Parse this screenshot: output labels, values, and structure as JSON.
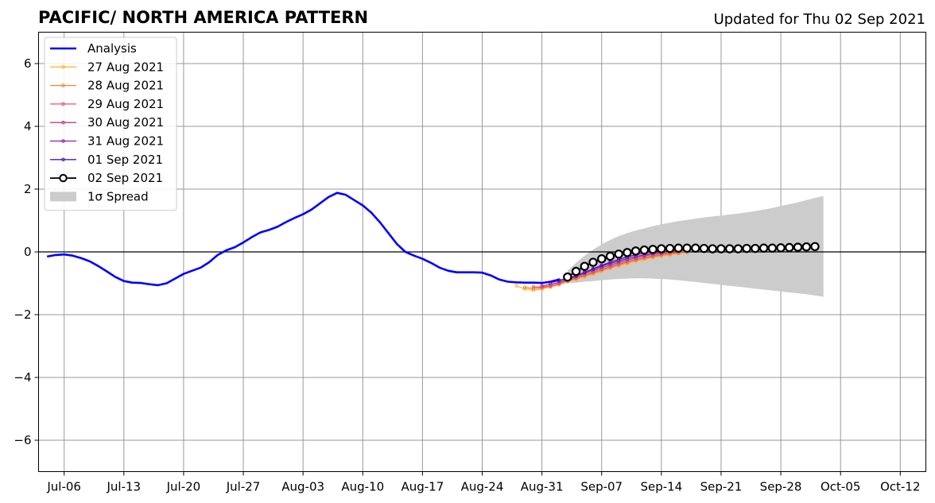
{
  "chart_data": {
    "type": "line",
    "title": "PACIFIC/ NORTH AMERICA PATTERN",
    "subtitle": "Updated for Thu 02 Sep 2021",
    "xlabel": "",
    "ylabel": "",
    "ylim": [
      -7,
      7
    ],
    "xlim": [
      "2021-07-03",
      "2021-10-15"
    ],
    "grid": true,
    "legend_position": "upper-left",
    "y_ticks": [
      -6,
      -4,
      -2,
      0,
      2,
      4,
      6
    ],
    "y_tick_labels": [
      "−6",
      "−4",
      "−2",
      "0",
      "2",
      "4",
      "6"
    ],
    "x_ticks": [
      "2021-07-06",
      "2021-07-13",
      "2021-07-20",
      "2021-07-27",
      "2021-08-03",
      "2021-08-10",
      "2021-08-17",
      "2021-08-24",
      "2021-08-31",
      "2021-09-07",
      "2021-09-14",
      "2021-09-21",
      "2021-09-28",
      "2021-10-05",
      "2021-10-12"
    ],
    "x_tick_labels": [
      "Jul-06",
      "Jul-13",
      "Jul-20",
      "Jul-27",
      "Aug-03",
      "Aug-10",
      "Aug-17",
      "Aug-24",
      "Aug-31",
      "Sep-07",
      "Sep-14",
      "Sep-21",
      "Sep-28",
      "Oct-05",
      "Oct-12"
    ],
    "analysis": {
      "name": "Analysis",
      "color": "#0000ff",
      "x": [
        "2021-07-04",
        "2021-07-05",
        "2021-07-06",
        "2021-07-07",
        "2021-07-08",
        "2021-07-09",
        "2021-07-10",
        "2021-07-11",
        "2021-07-12",
        "2021-07-13",
        "2021-07-14",
        "2021-07-15",
        "2021-07-16",
        "2021-07-17",
        "2021-07-18",
        "2021-07-19",
        "2021-07-20",
        "2021-07-21",
        "2021-07-22",
        "2021-07-23",
        "2021-07-24",
        "2021-07-25",
        "2021-07-26",
        "2021-07-27",
        "2021-07-28",
        "2021-07-29",
        "2021-07-30",
        "2021-07-31",
        "2021-08-01",
        "2021-08-02",
        "2021-08-03",
        "2021-08-04",
        "2021-08-05",
        "2021-08-06",
        "2021-08-07",
        "2021-08-08",
        "2021-08-09",
        "2021-08-10",
        "2021-08-11",
        "2021-08-12",
        "2021-08-13",
        "2021-08-14",
        "2021-08-15",
        "2021-08-16",
        "2021-08-17",
        "2021-08-18",
        "2021-08-19",
        "2021-08-20",
        "2021-08-21",
        "2021-08-22",
        "2021-08-23",
        "2021-08-24",
        "2021-08-25",
        "2021-08-26",
        "2021-08-27",
        "2021-08-28",
        "2021-08-29",
        "2021-08-30",
        "2021-08-31",
        "2021-09-01",
        "2021-09-02"
      ],
      "y": [
        -0.15,
        -0.1,
        -0.08,
        -0.12,
        -0.2,
        -0.3,
        -0.45,
        -0.62,
        -0.8,
        -0.93,
        -0.98,
        -0.99,
        -1.03,
        -1.06,
        -1.0,
        -0.85,
        -0.7,
        -0.6,
        -0.5,
        -0.33,
        -0.1,
        0.05,
        0.15,
        0.3,
        0.47,
        0.62,
        0.7,
        0.8,
        0.95,
        1.08,
        1.2,
        1.35,
        1.55,
        1.75,
        1.88,
        1.82,
        1.65,
        1.48,
        1.25,
        0.95,
        0.6,
        0.25,
        0.0,
        -0.12,
        -0.22,
        -0.35,
        -0.5,
        -0.6,
        -0.65,
        -0.65,
        -0.65,
        -0.66,
        -0.75,
        -0.88,
        -0.95,
        -0.97,
        -0.98,
        -0.98,
        -0.99,
        -0.95,
        -0.88
      ]
    },
    "forecasts": [
      {
        "name": "27 Aug 2021",
        "color": "#ffb733",
        "start": "2021-08-28",
        "y": [
          -1.08,
          -1.18,
          -1.22,
          -1.18,
          -1.12,
          -1.05,
          -0.95,
          -0.88,
          -0.8,
          -0.72,
          -0.62,
          -0.53,
          -0.45,
          -0.38,
          -0.3,
          -0.24,
          -0.19,
          -0.14,
          -0.1,
          -0.05,
          -0.02
        ]
      },
      {
        "name": "28 Aug 2021",
        "color": "#f08a3c",
        "start": "2021-08-29",
        "y": [
          -1.13,
          -1.17,
          -1.15,
          -1.1,
          -1.02,
          -0.93,
          -0.85,
          -0.77,
          -0.68,
          -0.59,
          -0.5,
          -0.42,
          -0.34,
          -0.27,
          -0.21,
          -0.16,
          -0.11,
          -0.07,
          -0.04,
          -0.01
        ]
      },
      {
        "name": "29 Aug 2021",
        "color": "#e05a6f",
        "start": "2021-08-30",
        "y": [
          -1.12,
          -1.12,
          -1.08,
          -1.0,
          -0.92,
          -0.83,
          -0.74,
          -0.65,
          -0.56,
          -0.47,
          -0.39,
          -0.31,
          -0.24,
          -0.18,
          -0.13,
          -0.08,
          -0.04,
          -0.01,
          0.02
        ]
      },
      {
        "name": "30 Aug 2021",
        "color": "#b83d96",
        "start": "2021-08-31",
        "y": [
          -1.08,
          -1.03,
          -0.97,
          -0.88,
          -0.79,
          -0.69,
          -0.6,
          -0.51,
          -0.42,
          -0.34,
          -0.26,
          -0.19,
          -0.13,
          -0.08,
          -0.04,
          0.0,
          0.03,
          0.05
        ]
      },
      {
        "name": "31 Aug 2021",
        "color": "#8a1fb0",
        "start": "2021-09-01",
        "y": [
          -0.98,
          -0.92,
          -0.85,
          -0.76,
          -0.66,
          -0.56,
          -0.46,
          -0.37,
          -0.29,
          -0.21,
          -0.15,
          -0.09,
          -0.04,
          0.0,
          0.03,
          0.06,
          0.08
        ]
      },
      {
        "name": "01 Sep 2021",
        "color": "#4b1aa8",
        "start": "2021-09-02",
        "y": [
          -0.9,
          -0.85,
          -0.76,
          -0.65,
          -0.54,
          -0.43,
          -0.33,
          -0.24,
          -0.16,
          -0.09,
          -0.03,
          0.02,
          0.05,
          0.08,
          0.1,
          0.11
        ]
      },
      {
        "name": "02 Sep 2021",
        "color": "#000000",
        "start": "2021-09-03",
        "y": [
          -0.8,
          -0.62,
          -0.46,
          -0.33,
          -0.22,
          -0.14,
          -0.07,
          -0.02,
          0.03,
          0.06,
          0.08,
          0.1,
          0.11,
          0.12,
          0.12,
          0.12,
          0.11,
          0.1,
          0.1,
          0.1,
          0.1,
          0.11,
          0.11,
          0.12,
          0.12,
          0.13,
          0.14,
          0.15,
          0.16,
          0.17
        ]
      }
    ],
    "spread": {
      "name": "1σ Spread",
      "color": "#cccccc",
      "start": "2021-09-03",
      "upper": [
        -0.6,
        -0.35,
        -0.12,
        0.07,
        0.24,
        0.38,
        0.5,
        0.6,
        0.68,
        0.75,
        0.82,
        0.88,
        0.93,
        0.98,
        1.02,
        1.06,
        1.1,
        1.13,
        1.16,
        1.19,
        1.22,
        1.26,
        1.3,
        1.35,
        1.4,
        1.46,
        1.52,
        1.58,
        1.65,
        1.72,
        1.78
      ],
      "lower": [
        -1.0,
        -0.98,
        -0.95,
        -0.93,
        -0.9,
        -0.88,
        -0.86,
        -0.85,
        -0.84,
        -0.84,
        -0.85,
        -0.86,
        -0.88,
        -0.9,
        -0.93,
        -0.96,
        -0.99,
        -1.02,
        -1.05,
        -1.08,
        -1.11,
        -1.14,
        -1.17,
        -1.2,
        -1.23,
        -1.26,
        -1.29,
        -1.32,
        -1.35,
        -1.39,
        -1.43
      ]
    }
  }
}
